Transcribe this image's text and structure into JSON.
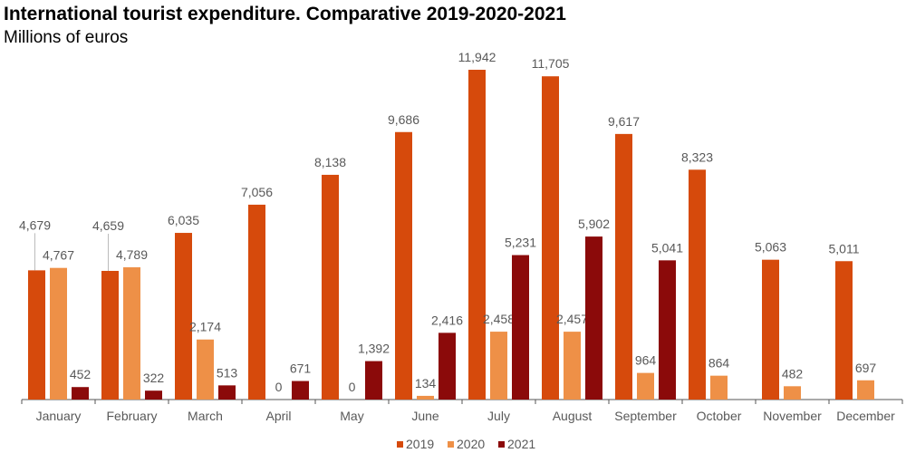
{
  "chart_data": {
    "type": "bar",
    "title": "International tourist expenditure. Comparative 2019-2020-2021",
    "subtitle": "Millions of euros",
    "xlabel": "",
    "ylabel": "",
    "categories": [
      "January",
      "February",
      "March",
      "April",
      "May",
      "June",
      "July",
      "August",
      "September",
      "October",
      "November",
      "December"
    ],
    "series": [
      {
        "name": "2019",
        "color": "#d64a0c",
        "values": [
          4679,
          4659,
          6035,
          7056,
          8138,
          9686,
          11942,
          11705,
          9617,
          8323,
          5063,
          5011
        ]
      },
      {
        "name": "2020",
        "color": "#ee9047",
        "values": [
          4767,
          4789,
          2174,
          0,
          0,
          134,
          2458,
          2457,
          964,
          864,
          482,
          697
        ]
      },
      {
        "name": "2021",
        "color": "#8b0a0a",
        "values": [
          452,
          322,
          513,
          671,
          1392,
          2416,
          5231,
          5902,
          5041,
          null,
          null,
          null
        ]
      }
    ],
    "ylim": [
      0,
      11942
    ],
    "grid": false,
    "legend": "bottom",
    "data_labels": true
  }
}
